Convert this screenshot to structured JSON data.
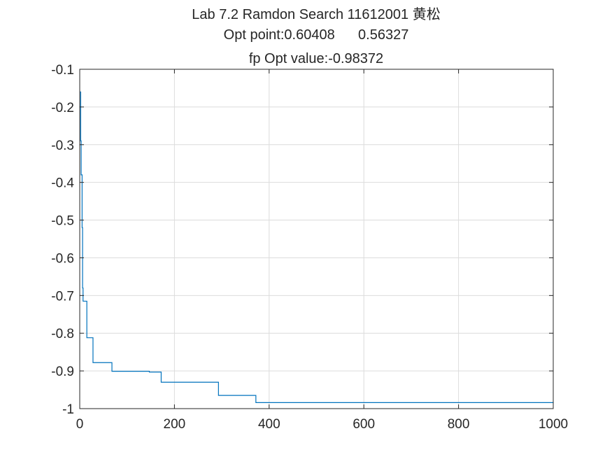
{
  "chart_data": {
    "type": "line",
    "title_lines": [
      "Lab 7.2 Ramdon Search 11612001 黄松",
      "Opt point:0.60408      0.56327",
      "fp Opt value:-0.98372"
    ],
    "xlabel": "",
    "ylabel": "",
    "xlim": [
      0,
      1000
    ],
    "ylim": [
      -1,
      -0.1
    ],
    "x_ticks": [
      0,
      200,
      400,
      600,
      800,
      1000
    ],
    "x_tick_labels": [
      "0",
      "200",
      "400",
      "600",
      "800",
      "1000"
    ],
    "y_ticks": [
      -1,
      -0.9,
      -0.8,
      -0.7,
      -0.6,
      -0.5,
      -0.4,
      -0.3,
      -0.2,
      -0.1
    ],
    "y_tick_labels": [
      "-1",
      "-0.9",
      "-0.8",
      "-0.7",
      "-0.6",
      "-0.5",
      "-0.4",
      "-0.3",
      "-0.2",
      "-0.1"
    ],
    "grid": true,
    "series": [
      {
        "color": "#0072BD",
        "step": true,
        "x": [
          1,
          2,
          3,
          4,
          5,
          6,
          7,
          10,
          15,
          28,
          68,
          147,
          172,
          293,
          372,
          1000
        ],
        "y": [
          -0.16,
          -0.29,
          -0.38,
          -0.38,
          -0.52,
          -0.68,
          -0.715,
          -0.715,
          -0.812,
          -0.878,
          -0.901,
          -0.903,
          -0.93,
          -0.965,
          -0.984,
          -0.98372
        ]
      }
    ]
  }
}
